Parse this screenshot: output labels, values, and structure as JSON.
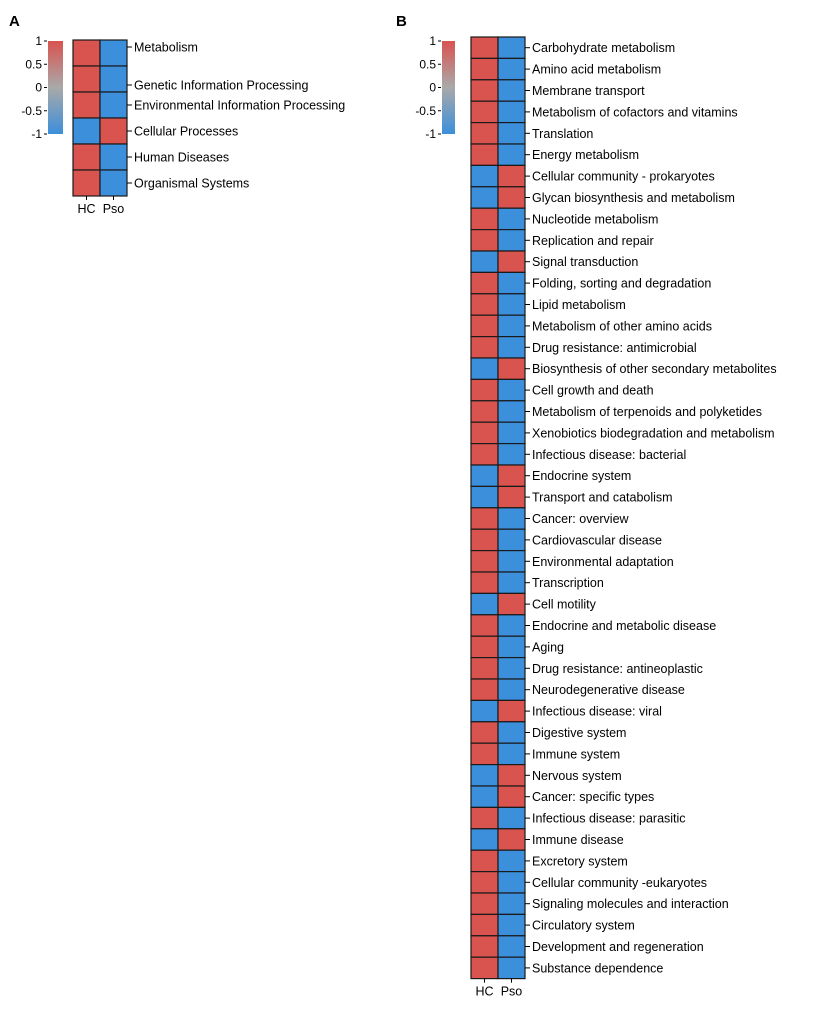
{
  "colors": {
    "high": "#d9534f",
    "mid": "#a9a9a9",
    "low": "#3b8fdb",
    "grid": "#1a1a1a"
  },
  "chart_data": [
    {
      "type": "heatmap",
      "panel_label": "A",
      "columns": [
        "HC",
        "Pso"
      ],
      "colorbar": {
        "min": -1,
        "max": 1,
        "ticks": [
          "1",
          "0.5",
          "0",
          "-0.5",
          "-1"
        ]
      },
      "rows": [
        {
          "label": "Metabolism",
          "values": [
            1,
            -1
          ]
        },
        {
          "label": "Genetic Information Processing",
          "values": [
            1,
            -1
          ]
        },
        {
          "label": "Environmental Information Processing",
          "values": [
            1,
            -1
          ]
        },
        {
          "label": "Cellular Processes",
          "values": [
            -1,
            1
          ]
        },
        {
          "label": "Human Diseases",
          "values": [
            1,
            -1
          ]
        },
        {
          "label": "Organismal Systems",
          "values": [
            1,
            -1
          ]
        }
      ]
    },
    {
      "type": "heatmap",
      "panel_label": "B",
      "columns": [
        "HC",
        "Pso"
      ],
      "colorbar": {
        "min": -1,
        "max": 1,
        "ticks": [
          "1",
          "0.5",
          "0",
          "-0.5",
          "-1"
        ]
      },
      "rows": [
        {
          "label": "Carbohydrate metabolism",
          "values": [
            1,
            -1
          ]
        },
        {
          "label": "Amino acid metabolism",
          "values": [
            1,
            -1
          ]
        },
        {
          "label": "Membrane transport",
          "values": [
            1,
            -1
          ]
        },
        {
          "label": "Metabolism of cofactors and vitamins",
          "values": [
            1,
            -1
          ]
        },
        {
          "label": "Translation",
          "values": [
            1,
            -1
          ]
        },
        {
          "label": "Energy metabolism",
          "values": [
            1,
            -1
          ]
        },
        {
          "label": "Cellular community - prokaryotes",
          "values": [
            -1,
            1
          ]
        },
        {
          "label": "Glycan biosynthesis and metabolism",
          "values": [
            -1,
            1
          ]
        },
        {
          "label": "Nucleotide metabolism",
          "values": [
            1,
            -1
          ]
        },
        {
          "label": "Replication and repair",
          "values": [
            1,
            -1
          ]
        },
        {
          "label": "Signal transduction",
          "values": [
            -1,
            1
          ]
        },
        {
          "label": "Folding, sorting and degradation",
          "values": [
            1,
            -1
          ]
        },
        {
          "label": "Lipid metabolism",
          "values": [
            1,
            -1
          ]
        },
        {
          "label": "Metabolism of other amino acids",
          "values": [
            1,
            -1
          ]
        },
        {
          "label": "Drug resistance: antimicrobial",
          "values": [
            1,
            -1
          ]
        },
        {
          "label": "Biosynthesis of other secondary metabolites",
          "values": [
            -1,
            1
          ]
        },
        {
          "label": "Cell growth and death",
          "values": [
            1,
            -1
          ]
        },
        {
          "label": "Metabolism of terpenoids and polyketides",
          "values": [
            1,
            -1
          ]
        },
        {
          "label": "Xenobiotics biodegradation and metabolism",
          "values": [
            1,
            -1
          ]
        },
        {
          "label": "Infectious disease: bacterial",
          "values": [
            1,
            -1
          ]
        },
        {
          "label": "Endocrine system",
          "values": [
            -1,
            1
          ]
        },
        {
          "label": "Transport and catabolism",
          "values": [
            -1,
            1
          ]
        },
        {
          "label": "Cancer: overview",
          "values": [
            1,
            -1
          ]
        },
        {
          "label": "Cardiovascular disease",
          "values": [
            1,
            -1
          ]
        },
        {
          "label": "Environmental adaptation",
          "values": [
            1,
            -1
          ]
        },
        {
          "label": "Transcription",
          "values": [
            1,
            -1
          ]
        },
        {
          "label": "Cell motility",
          "values": [
            -1,
            1
          ]
        },
        {
          "label": "Endocrine and metabolic disease",
          "values": [
            1,
            -1
          ]
        },
        {
          "label": "Aging",
          "values": [
            1,
            -1
          ]
        },
        {
          "label": "Drug resistance: antineoplastic",
          "values": [
            1,
            -1
          ]
        },
        {
          "label": "Neurodegenerative disease",
          "values": [
            1,
            -1
          ]
        },
        {
          "label": "Infectious disease: viral",
          "values": [
            -1,
            1
          ]
        },
        {
          "label": "Digestive system",
          "values": [
            1,
            -1
          ]
        },
        {
          "label": "Immune system",
          "values": [
            1,
            -1
          ]
        },
        {
          "label": "Nervous system",
          "values": [
            -1,
            1
          ]
        },
        {
          "label": "Cancer: specific types",
          "values": [
            -1,
            1
          ]
        },
        {
          "label": "Infectious disease: parasitic",
          "values": [
            1,
            -1
          ]
        },
        {
          "label": "Immune disease",
          "values": [
            -1,
            1
          ]
        },
        {
          "label": "Excretory system",
          "values": [
            1,
            -1
          ]
        },
        {
          "label": "Cellular community -eukaryotes",
          "values": [
            1,
            -1
          ]
        },
        {
          "label": "Signaling molecules and interaction",
          "values": [
            1,
            -1
          ]
        },
        {
          "label": "Circulatory system",
          "values": [
            1,
            -1
          ]
        },
        {
          "label": "Development and regeneration",
          "values": [
            1,
            -1
          ]
        },
        {
          "label": "Substance dependence",
          "values": [
            1,
            -1
          ]
        }
      ]
    }
  ]
}
